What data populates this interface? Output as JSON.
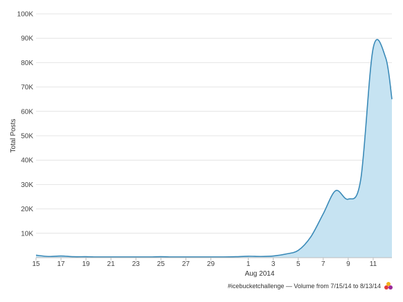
{
  "chart_data": {
    "type": "area",
    "ylabel": "Total Posts",
    "xlabel": "Aug 2014",
    "yticks": [
      "100K",
      "90K",
      "80K",
      "70K",
      "60K",
      "50K",
      "40K",
      "30K",
      "20K",
      "10K"
    ],
    "ytick_values": [
      100000,
      90000,
      80000,
      70000,
      60000,
      50000,
      40000,
      30000,
      20000,
      10000
    ],
    "ylim": [
      0,
      100000
    ],
    "xticks": [
      "15",
      "17",
      "19",
      "21",
      "23",
      "25",
      "27",
      "29",
      "1",
      "3",
      "5",
      "7",
      "9",
      "11"
    ],
    "xtick_days": [
      0,
      2,
      4,
      6,
      8,
      10,
      12,
      14,
      17,
      19,
      21,
      23,
      25,
      27
    ],
    "xlim": [
      0,
      28.5
    ],
    "x_unit": "days since Jul 15, 2014",
    "series": [
      {
        "x": [
          0,
          1,
          2,
          3,
          4,
          5,
          6,
          7,
          8,
          9,
          10,
          11,
          12,
          13,
          14,
          15,
          16,
          17,
          18,
          19,
          20,
          21,
          22,
          23,
          24,
          25,
          26,
          27,
          28,
          28.5
        ],
        "values": [
          1000,
          500,
          700,
          400,
          400,
          300,
          300,
          300,
          300,
          300,
          400,
          300,
          300,
          300,
          300,
          300,
          400,
          600,
          500,
          700,
          1500,
          3000,
          8500,
          18000,
          27500,
          24000,
          32000,
          86000,
          82000,
          65000
        ]
      }
    ],
    "line_color": "#3a8ab8",
    "fill_color": "#c6e3f2",
    "grid": true,
    "footer": "#icebucketchallenge — Volume from 7/15/14 to 8/13/14"
  }
}
